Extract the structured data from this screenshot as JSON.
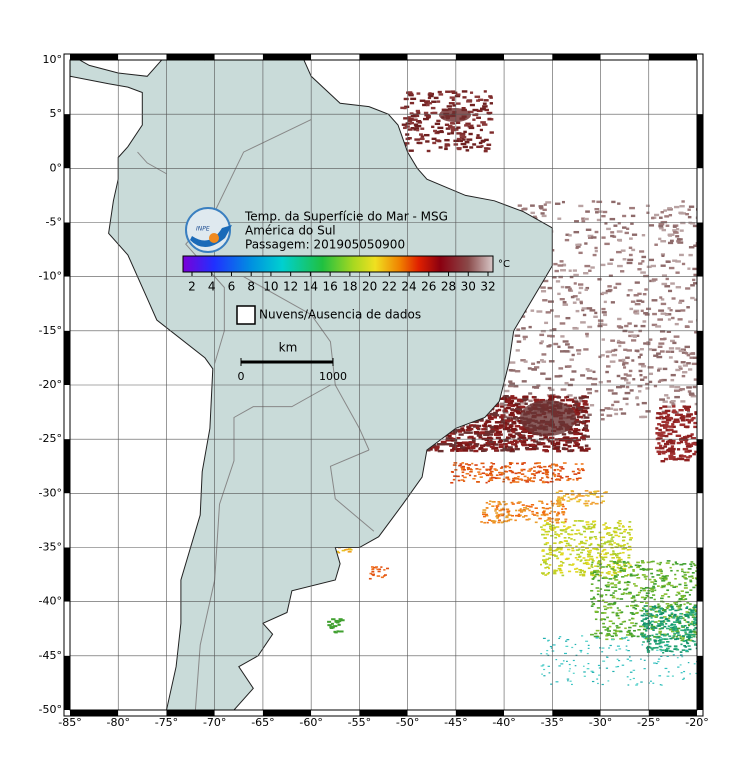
{
  "header": {
    "title": "Temp. da Superfície do Mar - MSG",
    "region": "América do Sul",
    "pass": "Passagem: 201905050900",
    "logo": "INPE"
  },
  "colorbar": {
    "ticks": [
      2,
      4,
      6,
      8,
      10,
      12,
      14,
      16,
      18,
      20,
      22,
      24,
      26,
      28,
      30,
      32
    ],
    "unit": "°C"
  },
  "legend": {
    "clouds": "Nuvens/Ausencia de dados"
  },
  "scale": {
    "unit": "km",
    "labels": [
      "0",
      "1000"
    ]
  },
  "map": {
    "grid": true,
    "lon_ticks": [
      {
        "value": -85,
        "label": "-85°"
      },
      {
        "value": -80,
        "label": "-80°"
      },
      {
        "value": -75,
        "label": "-75°"
      },
      {
        "value": -70,
        "label": "-70°"
      },
      {
        "value": -65,
        "label": "-65°"
      },
      {
        "value": -60,
        "label": "-60°"
      },
      {
        "value": -55,
        "label": "-55°"
      },
      {
        "value": -50,
        "label": "-50°"
      },
      {
        "value": -45,
        "label": "-45°"
      },
      {
        "value": -40,
        "label": "-40°"
      },
      {
        "value": -35,
        "label": "-35°"
      },
      {
        "value": -30,
        "label": "-30°"
      },
      {
        "value": -25,
        "label": "-25°"
      },
      {
        "value": -20,
        "label": "-20°"
      }
    ],
    "lat_ticks": [
      {
        "value": 10,
        "label": "10°"
      },
      {
        "value": 5,
        "label": "5°"
      },
      {
        "value": 0,
        "label": "0°"
      },
      {
        "value": -5,
        "label": "-5°"
      },
      {
        "value": -10,
        "label": "-10°"
      },
      {
        "value": -15,
        "label": "-15°"
      },
      {
        "value": -20,
        "label": "-20°"
      },
      {
        "value": -25,
        "label": "-25°"
      },
      {
        "value": -30,
        "label": "-30°"
      },
      {
        "value": -35,
        "label": "-35°"
      },
      {
        "value": -40,
        "label": "-40°"
      },
      {
        "value": -45,
        "label": "-45°"
      },
      {
        "value": -50,
        "label": "-50°"
      }
    ]
  }
}
